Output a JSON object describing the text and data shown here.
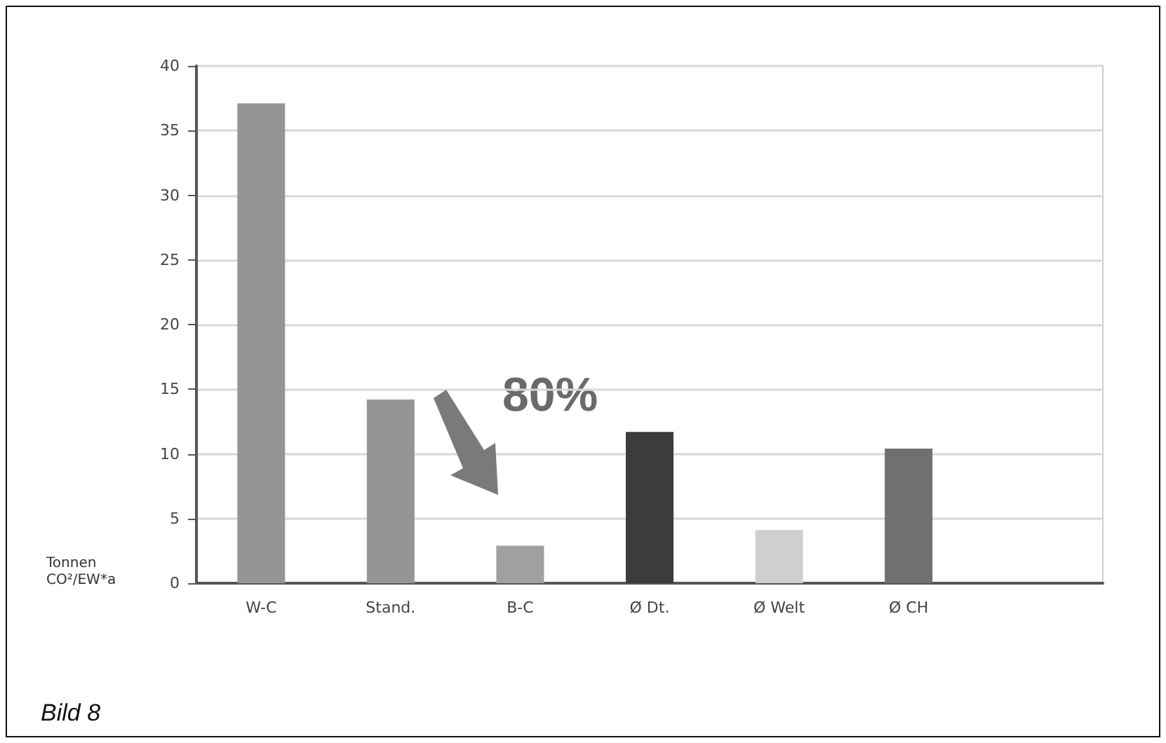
{
  "chart_data": {
    "type": "bar",
    "ylabel": "Tonnen\nCO²/EW*a",
    "categories": [
      "W-C",
      "Stand.",
      "B-C",
      "Ø Dt.",
      "Ø Welt",
      "Ø CH",
      null
    ],
    "values": [
      37.1,
      14.2,
      2.9,
      11.7,
      4.1,
      10.4,
      null
    ],
    "colors": [
      "#959595",
      "#959595",
      "#a0a0a0",
      "#3c3c3e",
      "#cfcfcf",
      "#707070",
      "#959595"
    ],
    "ylim": [
      0,
      40
    ],
    "yticks": [
      0,
      5,
      10,
      15,
      20,
      25,
      30,
      35,
      40
    ],
    "grid": "y",
    "annotations": [
      "80%",
      "Bild 8"
    ]
  }
}
